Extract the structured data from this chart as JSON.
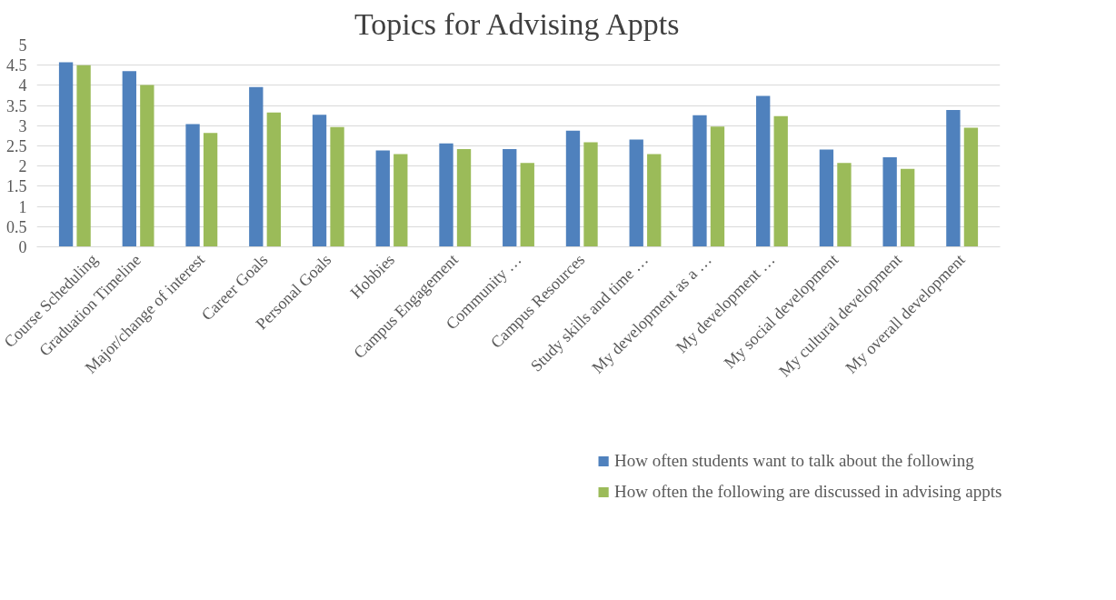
{
  "chart_data": {
    "type": "bar",
    "title": "Topics for Advising Appts",
    "categories": [
      "Course Scheduling",
      "Graduation Timeline",
      "Major/change of interest",
      "Career Goals",
      "Personal Goals",
      "Hobbies",
      "Campus Engagement",
      "Community …",
      "Campus Resources",
      "Study skills and time …",
      "My development as a …",
      "My development …",
      "My social development",
      "My cultural development",
      "My overall development"
    ],
    "series": [
      {
        "name": "How often students want to talk about the following",
        "color": "#4f81bd",
        "values": [
          4.57,
          4.35,
          3.04,
          3.96,
          3.27,
          2.39,
          2.56,
          2.42,
          2.88,
          2.66,
          3.26,
          3.74,
          2.41,
          2.22,
          3.39
        ]
      },
      {
        "name": "How often the following are discussed in advising appts",
        "color": "#9bbb59",
        "values": [
          4.5,
          4.01,
          2.82,
          3.33,
          2.97,
          2.3,
          2.42,
          2.08,
          2.59,
          2.3,
          2.98,
          3.24,
          2.08,
          1.93,
          2.95
        ]
      }
    ],
    "ylim": [
      0,
      5
    ],
    "yticks": [
      0,
      0.5,
      1,
      1.5,
      2,
      2.5,
      3,
      3.5,
      4,
      4.5,
      5
    ],
    "grid": "y",
    "legend": "bottom"
  }
}
